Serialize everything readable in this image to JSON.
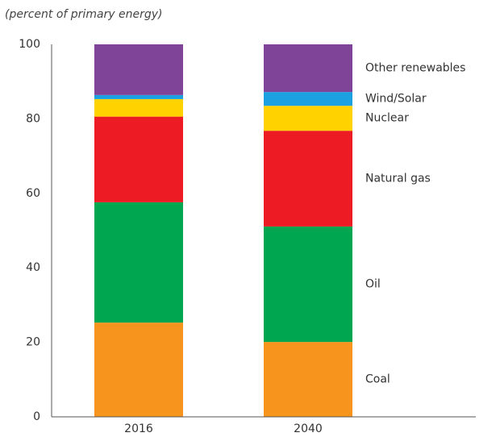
{
  "chart_data": {
    "type": "stacked-bar",
    "subtitle": "(percent of primary energy)",
    "categories": [
      "2016",
      "2040"
    ],
    "series": [
      {
        "name": "Coal",
        "color": "#f7941d",
        "values": [
          25.3,
          20.1
        ]
      },
      {
        "name": "Oil",
        "color": "#00a650",
        "values": [
          32.3,
          31
        ]
      },
      {
        "name": "Natural gas",
        "color": "#ed1c24",
        "values": [
          23,
          25.7
        ]
      },
      {
        "name": "Nuclear",
        "color": "#ffd200",
        "values": [
          4.7,
          6.7
        ]
      },
      {
        "name": "Wind/Solar",
        "color": "#1ba1e2",
        "values": [
          1.1,
          3.7
        ]
      },
      {
        "name": "Other renewables",
        "color": "#7f4397",
        "values": [
          13.6,
          12.8
        ]
      }
    ],
    "ylim": [
      0,
      100
    ],
    "yticks": [
      0,
      20,
      40,
      60,
      80,
      100
    ]
  }
}
